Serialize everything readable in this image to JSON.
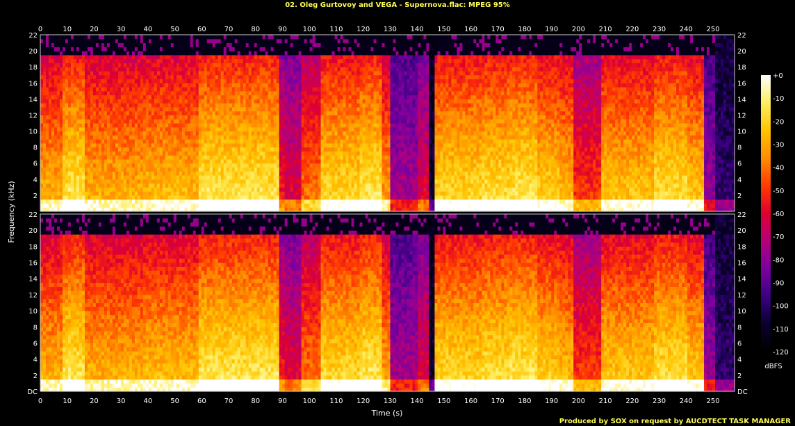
{
  "title": "02. Oleg Gurtovoy and VEGA - Supernova.flac: MPEG 95%",
  "footer": "Produced by SOX on request by AUCDTECT TASK MANAGER",
  "colorbar": {
    "unit_label": "dBFS",
    "ticks": [
      "+0",
      "-10",
      "-20",
      "-30",
      "-40",
      "-50",
      "-60",
      "-70",
      "-80",
      "-90",
      "-100",
      "-110",
      "-120"
    ],
    "stops": [
      "#000000",
      "#0a0030",
      "#3a0080",
      "#7a00a0",
      "#b4007a",
      "#e0002e",
      "#ff3a00",
      "#ff8c00",
      "#ffc400",
      "#ffee60",
      "#ffffff"
    ]
  },
  "chart_data": {
    "type": "heatmap",
    "title": "02. Oleg Gurtovoy and VEGA - Supernova.flac: MPEG 95%",
    "xlabel": "Time (s)",
    "ylabel": "Frequency (kHz)",
    "x_ticks": [
      "0",
      "10",
      "20",
      "30",
      "40",
      "50",
      "60",
      "70",
      "80",
      "90",
      "100",
      "110",
      "120",
      "130",
      "140",
      "150",
      "160",
      "170",
      "180",
      "190",
      "200",
      "210",
      "220",
      "230",
      "240",
      "250"
    ],
    "y_ticks_top": [
      "2",
      "4",
      "6",
      "8",
      "10",
      "12",
      "14",
      "16",
      "18",
      "20",
      "22"
    ],
    "y_ticks_bottom": [
      "DC",
      "2",
      "4",
      "6",
      "8",
      "10",
      "12",
      "14",
      "16",
      "18",
      "20",
      "22"
    ],
    "xlim": [
      0,
      258
    ],
    "ylim": [
      0,
      22
    ],
    "zlim": [
      -120,
      0
    ],
    "channels": 2,
    "lowpass_kHz": 19,
    "colorbar_label": "dBFS"
  }
}
